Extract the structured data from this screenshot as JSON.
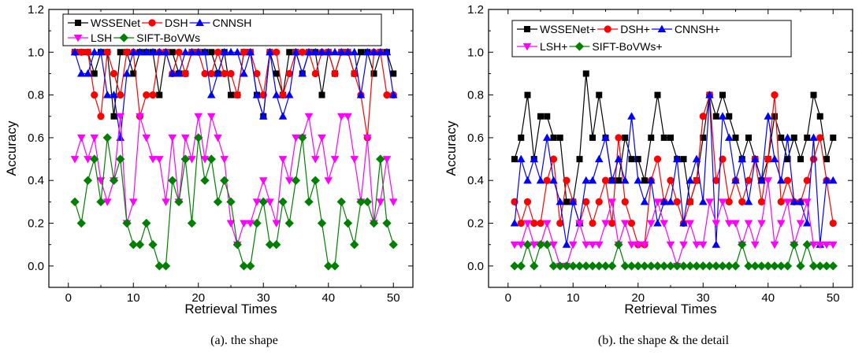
{
  "chart_data": [
    {
      "type": "line",
      "caption": "(a). the shape",
      "xlabel": "Retrieval Times",
      "ylabel": "Accuracy",
      "xlim": [
        -3,
        53
      ],
      "ylim": [
        -0.1,
        1.2
      ],
      "xticks": [
        0,
        10,
        20,
        30,
        40,
        50
      ],
      "xtick_labels": [
        "0",
        "10",
        "20",
        "30",
        "40",
        "50"
      ],
      "yticks": [
        0.0,
        0.2,
        0.4,
        0.6,
        0.8,
        1.0,
        1.2
      ],
      "ytick_labels": [
        "0.0",
        "0.2",
        "0.4",
        "0.6",
        "0.8",
        "1.0",
        "1.2"
      ],
      "grid": false,
      "legend_position": "top-right",
      "x": [
        1,
        2,
        3,
        4,
        5,
        6,
        7,
        8,
        9,
        10,
        11,
        12,
        13,
        14,
        15,
        16,
        17,
        18,
        19,
        20,
        21,
        22,
        23,
        24,
        25,
        26,
        27,
        28,
        29,
        30,
        31,
        32,
        33,
        34,
        35,
        36,
        37,
        38,
        39,
        40,
        41,
        42,
        43,
        44,
        45,
        46,
        47,
        48,
        49,
        50
      ],
      "series": [
        {
          "name": "WSSENet",
          "color": "#000000",
          "marker": "square",
          "values": [
            1.0,
            1.0,
            1.0,
            0.9,
            1.0,
            1.0,
            0.7,
            1.0,
            1.0,
            0.9,
            1.0,
            1.0,
            1.0,
            0.8,
            1.0,
            1.0,
            0.9,
            0.9,
            1.0,
            1.0,
            1.0,
            1.0,
            0.9,
            1.0,
            0.8,
            0.8,
            1.0,
            1.0,
            0.8,
            0.7,
            1.0,
            0.9,
            0.8,
            1.0,
            1.0,
            0.9,
            1.0,
            1.0,
            0.8,
            1.0,
            0.9,
            1.0,
            1.0,
            0.9,
            1.0,
            1.0,
            0.9,
            1.0,
            1.0,
            0.9
          ]
        },
        {
          "name": "DSH",
          "color": "#ff0000",
          "marker": "circle",
          "values": [
            1.0,
            1.0,
            1.0,
            0.8,
            0.7,
            1.0,
            0.9,
            0.8,
            1.0,
            1.0,
            0.7,
            0.8,
            0.8,
            1.0,
            1.0,
            0.9,
            1.0,
            0.9,
            1.0,
            1.0,
            0.9,
            0.9,
            1.0,
            0.9,
            0.9,
            0.8,
            1.0,
            1.0,
            0.9,
            0.8,
            1.0,
            1.0,
            0.8,
            0.9,
            1.0,
            1.0,
            1.0,
            0.9,
            1.0,
            1.0,
            0.9,
            1.0,
            1.0,
            0.9,
            0.8,
            0.6,
            1.0,
            1.0,
            0.8,
            0.8
          ]
        },
        {
          "name": "CNNSH",
          "color": "#0000ff",
          "marker": "triangle-up",
          "values": [
            1.0,
            0.9,
            0.9,
            1.0,
            1.0,
            0.8,
            0.8,
            0.6,
            0.9,
            1.0,
            1.0,
            1.0,
            1.0,
            1.0,
            1.0,
            0.9,
            0.9,
            1.0,
            1.0,
            1.0,
            1.0,
            0.8,
            0.9,
            1.0,
            1.0,
            1.0,
            0.9,
            1.0,
            0.8,
            0.7,
            1.0,
            0.8,
            0.7,
            0.8,
            1.0,
            0.9,
            1.0,
            1.0,
            1.0,
            1.0,
            1.0,
            1.0,
            1.0,
            1.0,
            0.8,
            1.0,
            1.0,
            1.0,
            1.0,
            0.8
          ]
        },
        {
          "name": "LSH",
          "color": "#ff00ff",
          "marker": "triangle-down",
          "values": [
            0.5,
            0.6,
            0.5,
            0.6,
            0.4,
            0.3,
            0.4,
            0.7,
            0.2,
            0.3,
            0.7,
            0.6,
            0.5,
            0.5,
            0.3,
            0.6,
            0.3,
            0.6,
            0.5,
            0.7,
            0.5,
            0.7,
            0.6,
            0.5,
            0.2,
            0.1,
            0.2,
            0.2,
            0.3,
            0.4,
            0.3,
            0.2,
            0.5,
            0.4,
            0.6,
            0.6,
            0.7,
            0.5,
            0.6,
            0.4,
            0.5,
            0.7,
            0.7,
            0.5,
            0.3,
            0.6,
            0.2,
            0.3,
            0.5,
            0.3
          ]
        },
        {
          "name": "SIFT-BoVWs",
          "color": "#008000",
          "marker": "diamond",
          "values": [
            0.3,
            0.2,
            0.4,
            0.5,
            0.3,
            0.6,
            0.4,
            0.5,
            0.2,
            0.1,
            0.1,
            0.2,
            0.1,
            0.0,
            0.0,
            0.4,
            0.3,
            0.5,
            0.2,
            0.6,
            0.4,
            0.5,
            0.3,
            0.4,
            0.3,
            0.1,
            0.0,
            0.0,
            0.2,
            0.3,
            0.1,
            0.1,
            0.3,
            0.2,
            0.4,
            0.6,
            0.3,
            0.4,
            0.2,
            0.0,
            0.0,
            0.3,
            0.2,
            0.1,
            0.3,
            0.3,
            0.2,
            0.5,
            0.2,
            0.1
          ]
        }
      ]
    },
    {
      "type": "line",
      "caption": "(b). the shape & the detail",
      "xlabel": "Retrieval Times",
      "ylabel": "Accuracy",
      "xlim": [
        -3,
        53
      ],
      "ylim": [
        -0.1,
        1.2
      ],
      "xticks": [
        0,
        10,
        20,
        30,
        40,
        50
      ],
      "xtick_labels": [
        "0",
        "10",
        "20",
        "30",
        "40",
        "50"
      ],
      "yticks": [
        0.0,
        0.2,
        0.4,
        0.6,
        0.8,
        1.0,
        1.2
      ],
      "ytick_labels": [
        "0.0",
        "0.2",
        "0.4",
        "0.6",
        "0.8",
        "1.0",
        "1.2"
      ],
      "grid": false,
      "legend_position": "top-left",
      "x": [
        1,
        2,
        3,
        4,
        5,
        6,
        7,
        8,
        9,
        10,
        11,
        12,
        13,
        14,
        15,
        16,
        17,
        18,
        19,
        20,
        21,
        22,
        23,
        24,
        25,
        26,
        27,
        28,
        29,
        30,
        31,
        32,
        33,
        34,
        35,
        36,
        37,
        38,
        39,
        40,
        41,
        42,
        43,
        44,
        45,
        46,
        47,
        48,
        49,
        50
      ],
      "series": [
        {
          "name": "WSSENet+",
          "color": "#000000",
          "marker": "square",
          "values": [
            0.5,
            0.6,
            0.8,
            0.5,
            0.7,
            0.7,
            0.6,
            0.6,
            0.3,
            0.3,
            0.5,
            0.9,
            0.6,
            0.8,
            0.6,
            0.4,
            0.4,
            0.6,
            0.5,
            0.5,
            0.4,
            0.6,
            0.8,
            0.6,
            0.6,
            0.5,
            0.5,
            0.3,
            0.4,
            0.6,
            0.8,
            0.7,
            0.8,
            0.7,
            0.6,
            0.5,
            0.6,
            0.5,
            0.4,
            0.5,
            0.7,
            0.6,
            0.5,
            0.6,
            0.5,
            0.6,
            0.8,
            0.7,
            0.5,
            0.6
          ]
        },
        {
          "name": "DSH+",
          "color": "#ff0000",
          "marker": "circle",
          "values": [
            0.3,
            0.2,
            0.3,
            0.2,
            0.2,
            0.4,
            0.5,
            0.2,
            0.4,
            0.3,
            0.2,
            0.3,
            0.2,
            0.3,
            0.4,
            0.2,
            0.6,
            0.3,
            0.2,
            0.1,
            0.1,
            0.4,
            0.5,
            0.3,
            0.4,
            0.3,
            0.2,
            0.3,
            0.4,
            0.7,
            0.8,
            0.4,
            0.5,
            0.3,
            0.4,
            0.3,
            0.4,
            0.5,
            0.3,
            0.5,
            0.8,
            0.3,
            0.4,
            0.3,
            0.3,
            0.4,
            0.5,
            0.6,
            0.4,
            0.2
          ]
        },
        {
          "name": "CNNSH+",
          "color": "#0000ff",
          "marker": "triangle-up",
          "values": [
            0.2,
            0.5,
            0.4,
            0.5,
            0.4,
            0.6,
            0.4,
            0.3,
            0.1,
            0.3,
            0.2,
            0.4,
            0.4,
            0.5,
            0.6,
            0.4,
            0.5,
            0.4,
            0.7,
            0.4,
            0.3,
            0.4,
            0.2,
            0.3,
            0.3,
            0.5,
            0.2,
            0.4,
            0.5,
            0.3,
            0.8,
            0.1,
            0.7,
            0.6,
            0.4,
            0.5,
            0.3,
            0.5,
            0.4,
            0.7,
            0.5,
            0.4,
            0.6,
            0.3,
            0.3,
            0.2,
            0.6,
            0.1,
            0.4,
            0.4
          ]
        },
        {
          "name": "LSH+",
          "color": "#ff00ff",
          "marker": "triangle-down",
          "values": [
            0.1,
            0.1,
            0.2,
            0.1,
            0.1,
            0.2,
            0.1,
            0.0,
            0.0,
            0.1,
            0.2,
            0.1,
            0.1,
            0.1,
            0.2,
            0.3,
            0.1,
            0.2,
            0.1,
            0.1,
            0.1,
            0.2,
            0.3,
            0.2,
            0.1,
            0.0,
            0.1,
            0.2,
            0.1,
            0.1,
            0.3,
            0.2,
            0.3,
            0.2,
            0.2,
            0.1,
            0.2,
            0.1,
            0.2,
            0.4,
            0.1,
            0.2,
            0.3,
            0.1,
            0.2,
            0.3,
            0.1,
            0.1,
            0.1,
            0.1
          ]
        },
        {
          "name": "SIFT-BoVWs+",
          "color": "#008000",
          "marker": "diamond",
          "values": [
            0.0,
            0.0,
            0.1,
            0.0,
            0.1,
            0.1,
            0.0,
            0.0,
            0.0,
            0.0,
            0.0,
            0.0,
            0.0,
            0.0,
            0.0,
            0.0,
            0.1,
            0.0,
            0.0,
            0.0,
            0.0,
            0.0,
            0.0,
            0.0,
            0.0,
            0.0,
            0.0,
            0.0,
            0.0,
            0.0,
            0.0,
            0.0,
            0.0,
            0.0,
            0.0,
            0.1,
            0.0,
            0.0,
            0.0,
            0.0,
            0.0,
            0.0,
            0.0,
            0.1,
            0.0,
            0.1,
            0.0,
            0.0,
            0.0,
            0.0
          ]
        }
      ]
    }
  ]
}
